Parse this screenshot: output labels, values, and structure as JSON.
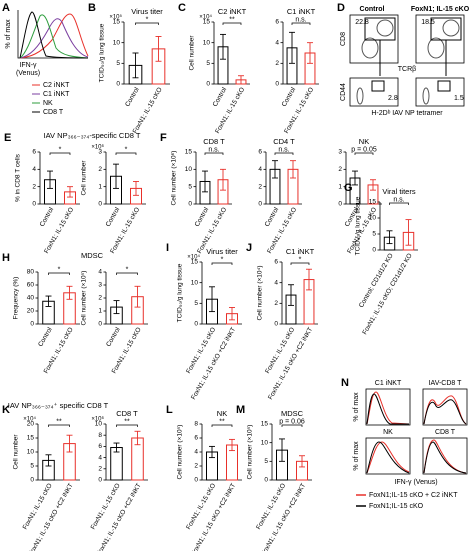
{
  "chart_data": [
    {
      "type": "bar",
      "panel": "B",
      "title": "Virus titer",
      "ylabel": "TCID₅₀/g lung tissue",
      "multiplier": "×10⁵",
      "categories": [
        "Control",
        "FoxN1; IL-15 cKO"
      ],
      "values": [
        4.5,
        8.5
      ],
      "errors": [
        3,
        3
      ],
      "colors": [
        "#000000",
        "#e8302a"
      ],
      "ylim": [
        0,
        15
      ],
      "yticks": [
        0,
        5,
        10,
        15
      ],
      "significance": "*"
    },
    {
      "type": "bar",
      "panel": "C",
      "title": "C2 iNKT",
      "ylabel": "Cell number",
      "multiplier": "×10⁴",
      "categories": [
        "Control",
        "FoxN1; IL-15 cKO"
      ],
      "values": [
        9,
        1
      ],
      "errors": [
        3,
        1
      ],
      "colors": [
        "#000000",
        "#e8302a"
      ],
      "ylim": [
        0,
        15
      ],
      "yticks": [
        0,
        5,
        10,
        15
      ],
      "significance": "**"
    },
    {
      "type": "bar",
      "title": "C1 iNKT",
      "categories": [
        "Control",
        "FoxN1; IL-15 cKO"
      ],
      "values": [
        3.5,
        3
      ],
      "errors": [
        1.5,
        1
      ],
      "colors": [
        "#000000",
        "#e8302a"
      ],
      "ylim": [
        0,
        6
      ],
      "yticks": [
        0,
        2,
        4,
        6
      ],
      "significance": "n.s."
    },
    {
      "type": "bar",
      "panel": "E",
      "title": "IAV NP₃₆₆₋₃₇₄-specific CD8 T",
      "ylabel": "% in CD8 T cells",
      "categories": [
        "Control",
        "FoxN1; IL-15 cKO"
      ],
      "values": [
        2.8,
        1.4
      ],
      "errors": [
        1,
        0.6
      ],
      "colors": [
        "#000000",
        "#e8302a"
      ],
      "ylim": [
        0,
        6
      ],
      "yticks": [
        0,
        2,
        4,
        6
      ],
      "significance": "*"
    },
    {
      "type": "bar",
      "ylabel": "Cell number",
      "multiplier": "×10⁶",
      "categories": [
        "Control",
        "FoxN1; IL-15 cKO"
      ],
      "values": [
        1.6,
        0.9
      ],
      "errors": [
        0.7,
        0.4
      ],
      "colors": [
        "#000000",
        "#e8302a"
      ],
      "ylim": [
        0,
        3
      ],
      "yticks": [
        0,
        1,
        2,
        3
      ],
      "significance": "*"
    },
    {
      "type": "bar",
      "panel": "F",
      "title": "CD8 T",
      "ylabel": "Cell number (×10⁶)",
      "categories": [
        "Control",
        "FoxN1; IL-15 cKO"
      ],
      "values": [
        6.5,
        7
      ],
      "errors": [
        3,
        3
      ],
      "colors": [
        "#000000",
        "#e8302a"
      ],
      "ylim": [
        0,
        15
      ],
      "yticks": [
        0,
        5,
        10,
        15
      ],
      "significance": "n.s."
    },
    {
      "type": "bar",
      "title": "CD4 T",
      "categories": [
        "Control",
        "FoxN1; IL-15 cKO"
      ],
      "values": [
        4,
        4
      ],
      "errors": [
        1,
        1
      ],
      "colors": [
        "#000000",
        "#e8302a"
      ],
      "ylim": [
        0,
        6
      ],
      "yticks": [
        0,
        2,
        4,
        6
      ],
      "significance": "n.s."
    },
    {
      "type": "bar",
      "title": "NK",
      "categories": [
        "Control",
        "FoxN1; IL-15 cKO"
      ],
      "values": [
        1.5,
        1.1
      ],
      "errors": [
        0.4,
        0.3
      ],
      "colors": [
        "#000000",
        "#e8302a"
      ],
      "ylim": [
        0,
        3
      ],
      "yticks": [
        0,
        1,
        2,
        3
      ],
      "significance": "p = 0.05"
    },
    {
      "type": "bar",
      "panel": "G",
      "title": "Viral titers",
      "ylabel": "TCID₅₀/g lung tissue",
      "categories": [
        "Control; CD1d1/2 KO",
        "FoxN1; IL-15 cKO; CD1d1/2 KO"
      ],
      "values": [
        4,
        5.5
      ],
      "errors": [
        2,
        4
      ],
      "colors": [
        "#000000",
        "#e8302a"
      ],
      "ylim": [
        0,
        15
      ],
      "yticks": [
        0,
        5,
        10,
        15
      ],
      "significance": "n.s."
    },
    {
      "type": "bar",
      "panel": "H",
      "title": "MDSC",
      "ylabel": "Frequency (%)",
      "categories": [
        "Control",
        "FoxN1; IL-15 cKO"
      ],
      "values": [
        35,
        48
      ],
      "errors": [
        8,
        10
      ],
      "colors": [
        "#000000",
        "#e8302a"
      ],
      "ylim": [
        0,
        80
      ],
      "yticks": [
        0,
        20,
        40,
        60,
        80
      ],
      "significance": "*"
    },
    {
      "type": "bar",
      "ylabel": "Cell number (×10⁵)",
      "categories": [
        "Control",
        "FoxN1; IL-15 cKO"
      ],
      "values": [
        1.3,
        2.1
      ],
      "errors": [
        0.5,
        0.8
      ],
      "colors": [
        "#000000",
        "#e8302a"
      ],
      "ylim": [
        0,
        4
      ],
      "yticks": [
        0,
        1,
        2,
        3,
        4
      ],
      "significance": "*"
    },
    {
      "type": "bar",
      "panel": "I",
      "title": "Virus titer",
      "ylabel": "TCID₅₀/g lung tissue",
      "multiplier": "×10⁴",
      "categories": [
        "FoxN1; IL-15 cKO",
        "FoxN1; IL-15 cKO +C2 iNKT"
      ],
      "values": [
        6,
        2.5
      ],
      "errors": [
        3,
        1.5
      ],
      "colors": [
        "#000000",
        "#e8302a"
      ],
      "ylim": [
        0,
        15
      ],
      "yticks": [
        0,
        5,
        10,
        15
      ],
      "significance": "*"
    },
    {
      "type": "bar",
      "panel": "J",
      "title": "C1 iNKT",
      "ylabel": "Cell number (×10⁴)",
      "categories": [
        "FoxN1; IL-15 cKO",
        "FoxN1; IL-15 cKO +C2 iNKT"
      ],
      "values": [
        2.8,
        4.3
      ],
      "errors": [
        1,
        1
      ],
      "colors": [
        "#000000",
        "#e8302a"
      ],
      "ylim": [
        0,
        6
      ],
      "yticks": [
        0,
        2,
        4,
        6
      ],
      "significance": "*"
    },
    {
      "type": "bar",
      "panel": "K",
      "title": "IAV NP₃₆₆₋₃₇₄⁺ specific CD8 T",
      "ylabel": "Cell number",
      "multiplier": "×10⁴",
      "categories": [
        "FoxN1; IL-15 cKO",
        "FoxN1; IL-15 cKO +C2 iNKT"
      ],
      "values": [
        7,
        13
      ],
      "errors": [
        2,
        3
      ],
      "colors": [
        "#000000",
        "#e8302a"
      ],
      "ylim": [
        0,
        20
      ],
      "yticks": [
        0,
        5,
        10,
        15,
        20
      ],
      "significance": "**"
    },
    {
      "type": "bar",
      "title": "CD8 T",
      "multiplier": "×10⁶",
      "categories": [
        "FoxN1; IL-15 cKO",
        "FoxN1; IL-15 cKO +C2 iNKT"
      ],
      "values": [
        5.8,
        7.5
      ],
      "errors": [
        0.8,
        1.2
      ],
      "colors": [
        "#000000",
        "#e8302a"
      ],
      "ylim": [
        0,
        10
      ],
      "yticks": [
        0,
        2,
        4,
        6,
        8,
        10
      ],
      "significance": "**"
    },
    {
      "type": "bar",
      "panel": "L",
      "title": "NK",
      "ylabel": "Cell number (×10⁵)",
      "categories": [
        "FoxN1; IL-15 cKO",
        "FoxN1; IL-15 cKO +C2 iNKT"
      ],
      "values": [
        4,
        5
      ],
      "errors": [
        0.8,
        0.8
      ],
      "colors": [
        "#000000",
        "#e8302a"
      ],
      "ylim": [
        0,
        8
      ],
      "yticks": [
        0,
        2,
        4,
        6,
        8
      ],
      "significance": "**"
    },
    {
      "type": "bar",
      "panel": "M",
      "title": "MDSC",
      "ylabel": "Cell number (×10⁵)",
      "categories": [
        "FoxN1; IL-15 cKO",
        "FoxN1; IL-15 cKO +C2 iNKT"
      ],
      "values": [
        8,
        5
      ],
      "errors": [
        3,
        1.5
      ],
      "colors": [
        "#000000",
        "#e8302a"
      ],
      "ylim": [
        0,
        15
      ],
      "yticks": [
        0,
        5,
        10,
        15
      ],
      "significance": "p = 0.06"
    }
  ],
  "flow": {
    "A": {
      "panel": "A",
      "ylabel": "% of max",
      "xlabel": [
        "IFN-γ",
        "(Venus)"
      ],
      "legend": [
        "C2 iNKT",
        "C1 iNKT",
        "NK",
        "CD8 T"
      ]
    },
    "D": {
      "panel": "D",
      "groups": [
        "Control",
        "FoxN1; IL-15 cKO"
      ],
      "top_y": "CD8",
      "top_x": "TCRβ",
      "bottom_y": "CD44",
      "bottom_x": "H-2Dᵇ IAV NP tetramer",
      "top_gates": [
        22.8,
        18.5
      ],
      "bottom_gates": [
        2.8,
        1.5
      ]
    },
    "N": {
      "panel": "N",
      "titles": [
        "C1 iNKT",
        "IAV-CD8 T",
        "NK",
        "CD8 T"
      ],
      "ylabel": "% of max",
      "xlabel": "IFN-γ (Venus)",
      "legend": [
        "FoxN1;IL-15 cKO + C2 iNKT",
        "FoxN1;IL-15 cKO"
      ]
    }
  }
}
